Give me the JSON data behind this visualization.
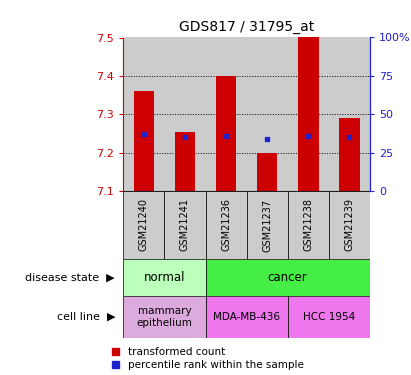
{
  "title": "GDS817 / 31795_at",
  "samples": [
    "GSM21240",
    "GSM21241",
    "GSM21236",
    "GSM21237",
    "GSM21238",
    "GSM21239"
  ],
  "bar_tops": [
    7.36,
    7.255,
    7.4,
    7.2,
    7.5,
    7.29
  ],
  "bar_bottom": 7.1,
  "blue_sq_y": [
    7.25,
    7.24,
    7.245,
    7.235,
    7.245,
    7.24
  ],
  "ylim": [
    7.1,
    7.5
  ],
  "y_ticks_left": [
    7.1,
    7.2,
    7.3,
    7.4,
    7.5
  ],
  "y_ticks_right": [
    0,
    25,
    50,
    75,
    100
  ],
  "right_ylim": [
    0,
    100
  ],
  "bar_color": "#cc0000",
  "blue_color": "#2222cc",
  "disease_normal_color": "#bbffbb",
  "disease_cancer_color": "#44ee44",
  "cell_line_normal_color": "#ddaadd",
  "cell_line_mda_color": "#ee77ee",
  "cell_line_hcc_color": "#ee77ee",
  "sample_bg_color": "#cccccc",
  "bar_width": 0.5,
  "left_label_color": "#cc0000",
  "right_label_color": "#2222cc",
  "legend_red_label": "transformed count",
  "legend_blue_label": "percentile rank within the sample"
}
